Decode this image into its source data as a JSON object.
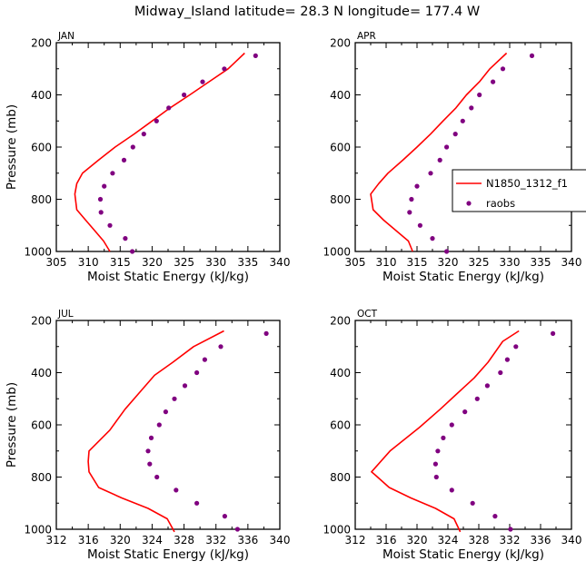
{
  "title": "Midway_Island   latitude= 28.3 N longitude= 177.4 W",
  "colors": {
    "model": "#ff0000",
    "raobs": "#800080",
    "axes": "#000000"
  },
  "legend": {
    "placement": "right of APR panel",
    "entries": [
      "N1850_1312_f1",
      "raobs"
    ]
  },
  "chart_data": [
    {
      "type": "line",
      "panel": "JAN",
      "xlabel": "Moist Static Energy (kJ/kg)",
      "ylabel": "Pressure (mb)",
      "xlim": [
        305,
        340
      ],
      "xticks": [
        305,
        310,
        315,
        320,
        325,
        330,
        335,
        340
      ],
      "ylim": [
        1000,
        200
      ],
      "yticks": [
        200,
        400,
        600,
        800,
        1000
      ],
      "series": [
        {
          "name": "N1850_1312_f1",
          "style": "line",
          "points": [
            [
              313.4,
              1000
            ],
            [
              312.4,
              960
            ],
            [
              311.0,
              920
            ],
            [
              309.6,
              880
            ],
            [
              308.2,
              840
            ],
            [
              307.9,
              780
            ],
            [
              308.2,
              740
            ],
            [
              309.1,
              700
            ],
            [
              311.6,
              650
            ],
            [
              314.2,
              600
            ],
            [
              317.2,
              550
            ],
            [
              320.0,
              500
            ],
            [
              322.8,
              450
            ],
            [
              325.9,
              400
            ],
            [
              328.9,
              350
            ],
            [
              331.9,
              300
            ],
            [
              334.5,
              240
            ]
          ]
        },
        {
          "name": "raobs",
          "style": "markers",
          "points": [
            [
              316.9,
              1000
            ],
            [
              315.8,
              950
            ],
            [
              313.4,
              900
            ],
            [
              312.0,
              850
            ],
            [
              311.9,
              800
            ],
            [
              312.5,
              750
            ],
            [
              313.8,
              700
            ],
            [
              315.6,
              650
            ],
            [
              317.0,
              600
            ],
            [
              318.7,
              550
            ],
            [
              320.7,
              500
            ],
            [
              322.6,
              450
            ],
            [
              325.0,
              400
            ],
            [
              327.9,
              350
            ],
            [
              331.3,
              300
            ],
            [
              336.2,
              250
            ]
          ]
        }
      ]
    },
    {
      "type": "line",
      "panel": "APR",
      "xlabel": "Moist Static Energy (kJ/kg)",
      "xlim": [
        305,
        340
      ],
      "xticks": [
        305,
        310,
        315,
        320,
        325,
        330,
        335,
        340
      ],
      "ylim": [
        1000,
        200
      ],
      "yticks": [
        200,
        400,
        600,
        800,
        1000
      ],
      "series": [
        {
          "name": "N1850_1312_f1",
          "style": "line",
          "points": [
            [
              314.3,
              1000
            ],
            [
              313.6,
              960
            ],
            [
              311.6,
              920
            ],
            [
              309.6,
              880
            ],
            [
              307.9,
              840
            ],
            [
              307.5,
              780
            ],
            [
              308.8,
              740
            ],
            [
              310.3,
              700
            ],
            [
              312.7,
              650
            ],
            [
              315.0,
              600
            ],
            [
              317.2,
              550
            ],
            [
              319.2,
              500
            ],
            [
              321.3,
              450
            ],
            [
              323.0,
              400
            ],
            [
              325.1,
              350
            ],
            [
              326.8,
              300
            ],
            [
              329.5,
              240
            ]
          ]
        },
        {
          "name": "raobs",
          "style": "markers",
          "points": [
            [
              319.8,
              1000
            ],
            [
              317.5,
              950
            ],
            [
              315.5,
              900
            ],
            [
              313.8,
              850
            ],
            [
              314.1,
              800
            ],
            [
              315.0,
              750
            ],
            [
              317.2,
              700
            ],
            [
              318.7,
              650
            ],
            [
              319.8,
              600
            ],
            [
              321.2,
              550
            ],
            [
              322.4,
              500
            ],
            [
              323.8,
              450
            ],
            [
              325.1,
              400
            ],
            [
              327.3,
              350
            ],
            [
              328.9,
              300
            ],
            [
              333.6,
              250
            ]
          ]
        }
      ]
    },
    {
      "type": "line",
      "panel": "JUL",
      "xlabel": "Moist Static Energy (kJ/kg)",
      "ylabel": "Pressure (mb)",
      "xlim": [
        312,
        340
      ],
      "xticks": [
        312,
        316,
        320,
        324,
        328,
        332,
        336,
        340
      ],
      "ylim": [
        1000,
        200
      ],
      "yticks": [
        200,
        400,
        600,
        800,
        1000
      ],
      "series": [
        {
          "name": "N1850_1312_f1",
          "style": "line",
          "points": [
            [
              326.8,
              1010
            ],
            [
              325.9,
              960
            ],
            [
              323.5,
              920
            ],
            [
              320.2,
              880
            ],
            [
              317.3,
              840
            ],
            [
              316.1,
              780
            ],
            [
              316.0,
              740
            ],
            [
              316.1,
              700
            ],
            [
              318.7,
              620
            ],
            [
              320.6,
              540
            ],
            [
              322.6,
              470
            ],
            [
              324.3,
              410
            ],
            [
              326.6,
              360
            ],
            [
              329.2,
              300
            ],
            [
              333.0,
              240
            ]
          ]
        },
        {
          "name": "raobs",
          "style": "markers",
          "points": [
            [
              334.7,
              1000
            ],
            [
              333.1,
              950
            ],
            [
              329.6,
              900
            ],
            [
              327.0,
              850
            ],
            [
              324.6,
              800
            ],
            [
              323.7,
              750
            ],
            [
              323.5,
              700
            ],
            [
              323.9,
              650
            ],
            [
              324.9,
              600
            ],
            [
              325.7,
              550
            ],
            [
              326.8,
              500
            ],
            [
              328.1,
              450
            ],
            [
              329.6,
              400
            ],
            [
              330.6,
              350
            ],
            [
              332.6,
              300
            ],
            [
              338.3,
              250
            ]
          ]
        }
      ]
    },
    {
      "type": "line",
      "panel": "OCT",
      "xlabel": "Moist Static Energy (kJ/kg)",
      "xlim": [
        312,
        340
      ],
      "xticks": [
        312,
        316,
        320,
        324,
        328,
        332,
        336,
        340
      ],
      "ylim": [
        1000,
        200
      ],
      "yticks": [
        200,
        400,
        600,
        800,
        1000
      ],
      "series": [
        {
          "name": "N1850_1312_f1",
          "style": "line",
          "points": [
            [
              325.6,
              1010
            ],
            [
              324.8,
              960
            ],
            [
              322.4,
              920
            ],
            [
              319.2,
              880
            ],
            [
              316.4,
              840
            ],
            [
              314.5,
              790
            ],
            [
              314.1,
              780
            ],
            [
              316.5,
              700
            ],
            [
              320.3,
              610
            ],
            [
              323.0,
              540
            ],
            [
              325.2,
              480
            ],
            [
              327.4,
              420
            ],
            [
              329.2,
              360
            ],
            [
              331.1,
              280
            ],
            [
              333.2,
              240
            ]
          ]
        },
        {
          "name": "raobs",
          "style": "markers",
          "points": [
            [
              332.1,
              1000
            ],
            [
              330.1,
              950
            ],
            [
              327.2,
              900
            ],
            [
              324.5,
              850
            ],
            [
              322.5,
              800
            ],
            [
              322.4,
              750
            ],
            [
              322.7,
              700
            ],
            [
              323.4,
              650
            ],
            [
              324.5,
              600
            ],
            [
              326.2,
              550
            ],
            [
              327.8,
              500
            ],
            [
              329.1,
              450
            ],
            [
              330.8,
              400
            ],
            [
              331.7,
              350
            ],
            [
              332.8,
              300
            ],
            [
              337.6,
              250
            ]
          ]
        }
      ]
    }
  ]
}
